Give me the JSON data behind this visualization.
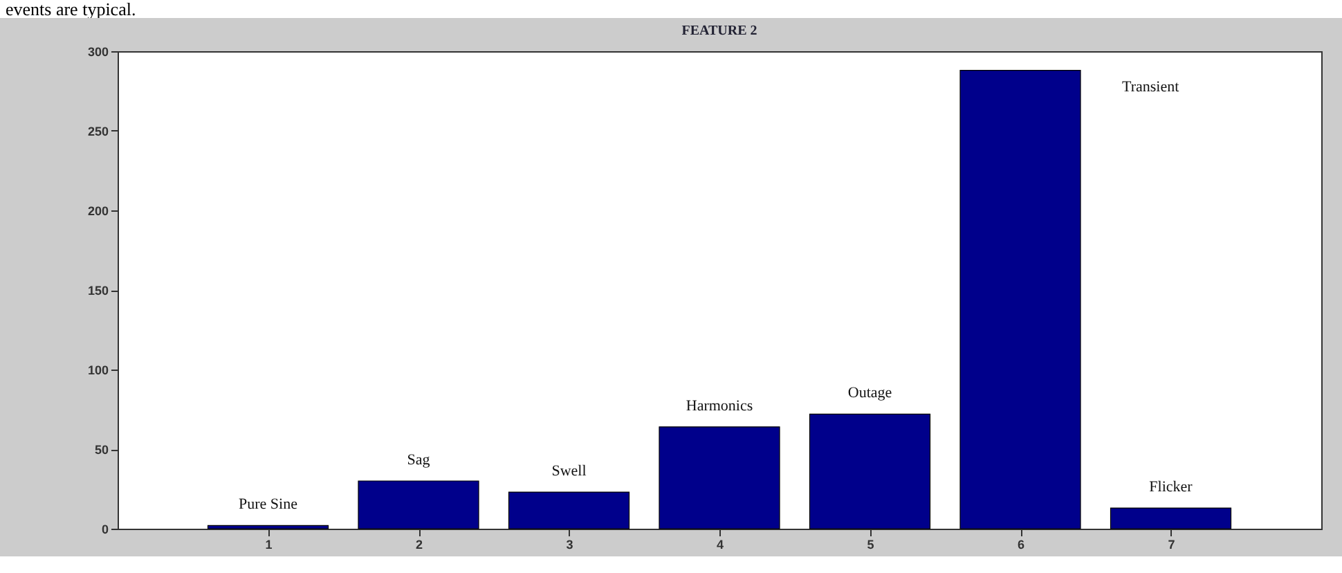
{
  "chart_data": {
    "type": "bar",
    "title": "FEATURE 2",
    "x": [
      1,
      2,
      3,
      4,
      5,
      6,
      7
    ],
    "values": [
      2,
      30,
      23,
      64,
      72,
      288,
      13
    ],
    "color": "#00008b",
    "xlim": [
      0,
      8
    ],
    "xticks": [
      1,
      2,
      3,
      4,
      5,
      6,
      7
    ],
    "ylim": [
      0,
      300
    ],
    "yticks": [
      0,
      50,
      100,
      150,
      200,
      250,
      300
    ],
    "annotations": [
      "events are typical.",
      "Pure Sine",
      "Sag",
      "Swell",
      "Harmonics",
      "Outage",
      "Transient",
      "Flicker"
    ]
  }
}
